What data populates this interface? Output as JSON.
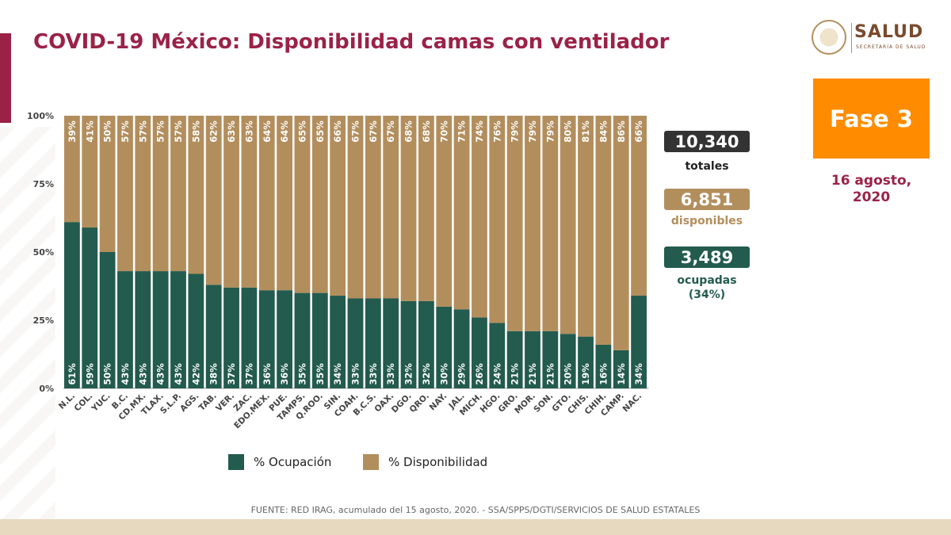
{
  "title": "COVID-19 México: Disponibilidad camas con ventilador",
  "logo": {
    "name": "SALUD",
    "subtitle": "SECRETARÍA DE SALUD"
  },
  "phase": "Fase 3",
  "date_line1": "16 agosto,",
  "date_line2": "2020",
  "stats": {
    "total": {
      "value": "10,340",
      "label": "totales"
    },
    "available": {
      "value": "6,851",
      "label": "disponibles"
    },
    "occupied": {
      "value": "3,489",
      "label": "ocupadas",
      "sub": "(34%)"
    }
  },
  "source": "FUENTE: RED IRAG, acumulado del 15 agosto, 2020. -  SSA/SPPS/DGTI/SERVICIOS DE SALUD ESTATALES",
  "colors": {
    "occupied": "#235b4e",
    "available": "#b38e5d",
    "accent": "#9b2247",
    "phase": "#ff8c00",
    "total": "#333333"
  },
  "chart_data": {
    "type": "bar",
    "stacked": true,
    "title": "COVID-19 México: Disponibilidad camas con ventilador",
    "ylim": [
      0,
      100
    ],
    "yticks": [
      "0%",
      "25%",
      "50%",
      "75%",
      "100%"
    ],
    "categories": [
      "N.L.",
      "COL.",
      "YUC.",
      "B.C.",
      "CD.MX.",
      "TLAX.",
      "S.L.P.",
      "AGS.",
      "TAB.",
      "VER.",
      "ZAC.",
      "EDO.MEX.",
      "PUE.",
      "TAMPS.",
      "Q.ROO.",
      "SIN.",
      "COAH.",
      "B.C.S.",
      "OAX.",
      "DGO.",
      "QRO.",
      "NAY.",
      "JAL.",
      "MICH.",
      "HGO.",
      "GRO.",
      "MOR.",
      "SON.",
      "GTO.",
      "CHIS.",
      "CHIH.",
      "CAMP.",
      "NAC."
    ],
    "series": [
      {
        "name": "% Ocupación",
        "values": [
          61,
          59,
          50,
          43,
          43,
          43,
          43,
          42,
          38,
          37,
          37,
          36,
          36,
          35,
          35,
          34,
          33,
          33,
          33,
          32,
          32,
          30,
          29,
          26,
          24,
          21,
          21,
          21,
          20,
          19,
          16,
          14,
          34
        ]
      },
      {
        "name": "% Disponibilidad",
        "values": [
          39,
          41,
          50,
          57,
          57,
          57,
          57,
          58,
          62,
          63,
          63,
          64,
          64,
          65,
          65,
          66,
          67,
          67,
          67,
          68,
          68,
          70,
          71,
          74,
          76,
          79,
          79,
          79,
          80,
          81,
          84,
          86,
          66
        ]
      }
    ],
    "legend": [
      "% Ocupación",
      "% Disponibilidad"
    ],
    "legend_position": "bottom",
    "grid": false
  }
}
